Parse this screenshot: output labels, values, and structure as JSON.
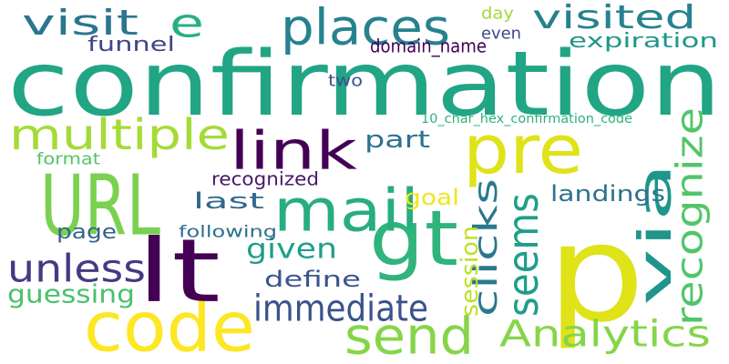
{
  "words": [
    {
      "text": "confirmation",
      "color": "#21a585"
    },
    {
      "text": "p",
      "color": "#dfe318"
    },
    {
      "text": "code",
      "color": "#fde725"
    },
    {
      "text": "lt",
      "color": "#440154"
    },
    {
      "text": "URL",
      "color": "#7ad151"
    },
    {
      "text": "pre",
      "color": "#dfe318"
    },
    {
      "text": "gt",
      "color": "#2fb47c"
    },
    {
      "text": "link",
      "color": "#440154"
    },
    {
      "text": "mail",
      "color": "#27ad81"
    },
    {
      "text": "send",
      "color": "#86d549"
    },
    {
      "text": "places",
      "color": "#26828e"
    },
    {
      "text": "e",
      "color": "#28ae80"
    },
    {
      "text": "via",
      "color": "#1f958b"
    },
    {
      "text": "multiple",
      "color": "#a5db36"
    },
    {
      "text": "seems",
      "color": "#1f9e89"
    },
    {
      "text": "clicks",
      "color": "#2a788e"
    },
    {
      "text": "recognize",
      "color": "#52c569"
    },
    {
      "text": "visit",
      "color": "#2a768e"
    },
    {
      "text": "visited",
      "color": "#26828e"
    },
    {
      "text": "Analytics",
      "color": "#86d549"
    },
    {
      "text": "unless",
      "color": "#443a83"
    },
    {
      "text": "immediate",
      "color": "#3b528b"
    },
    {
      "text": "given",
      "color": "#1f9e89"
    },
    {
      "text": "guessing",
      "color": "#4ac16d"
    },
    {
      "text": "session",
      "color": "#bddf26"
    },
    {
      "text": "landings",
      "color": "#2c728e"
    },
    {
      "text": "page",
      "color": "#33638d"
    },
    {
      "text": "last",
      "color": "#31688e"
    },
    {
      "text": "define",
      "color": "#39558c"
    },
    {
      "text": "part",
      "color": "#2c718e"
    },
    {
      "text": "goal",
      "color": "#f1e51d"
    },
    {
      "text": "funnel",
      "color": "#404688"
    },
    {
      "text": "expiration",
      "color": "#1f978b"
    },
    {
      "text": "domain_name",
      "color": "#440154"
    },
    {
      "text": "format",
      "color": "#54c568"
    },
    {
      "text": "following",
      "color": "#2d708e"
    },
    {
      "text": "recognized",
      "color": "#48186a"
    },
    {
      "text": "two",
      "color": "#3b528b"
    },
    {
      "text": "even",
      "color": "#3e4989"
    },
    {
      "text": "day",
      "color": "#a2da37"
    },
    {
      "text": "10_char_hex_confirmation_code",
      "color": "#2db27d"
    }
  ]
}
